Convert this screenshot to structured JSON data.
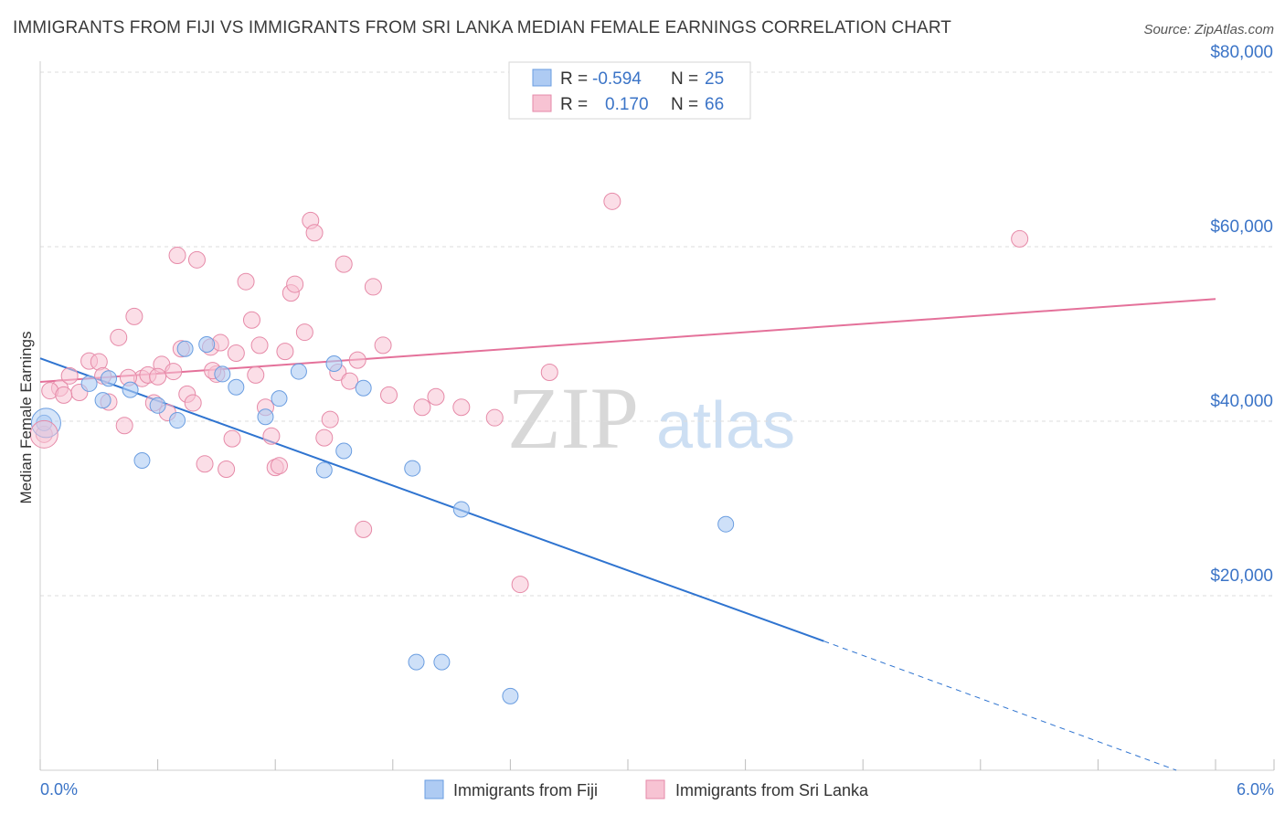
{
  "title": "IMMIGRANTS FROM FIJI VS IMMIGRANTS FROM SRI LANKA MEDIAN FEMALE EARNINGS CORRELATION CHART",
  "source": "Source: ZipAtlas.com",
  "watermark": {
    "zip": "ZIP",
    "atlas": "atlas"
  },
  "colors": {
    "fiji_fill": "#aecbf3",
    "fiji_stroke": "#6a9de0",
    "fiji_line": "#2f74d0",
    "srilanka_fill": "#f7c3d3",
    "srilanka_stroke": "#e68aa8",
    "srilanka_line": "#e4719a",
    "grid": "#dddddd",
    "tick_text": "#3b74c7"
  },
  "legend": {
    "rows": [
      {
        "r_label": "R =",
        "r_value": "-0.594",
        "n_label": "N =",
        "n_value": "25"
      },
      {
        "r_label": "R =",
        "r_value": "0.170",
        "n_label": "N =",
        "n_value": "66"
      }
    ]
  },
  "bottom_legend": [
    "Immigrants from Fiji",
    "Immigrants from Sri Lanka"
  ],
  "chart_data": {
    "type": "scatter",
    "xlabel": "",
    "ylabel": "Median Female Earnings",
    "xlim": [
      0,
      6
    ],
    "ylim": [
      0,
      80000
    ],
    "x_tick_labels": [
      "0.0%",
      "6.0%"
    ],
    "y_ticks": [
      20000,
      40000,
      60000,
      80000
    ],
    "y_tick_labels": [
      "$20,000",
      "$40,000",
      "$60,000",
      "$80,000"
    ],
    "grid": true,
    "legend_position": "top-center",
    "series": [
      {
        "name": "Immigrants from Fiji",
        "points": [
          [
            0.02,
            39800
          ],
          [
            0.25,
            44300
          ],
          [
            0.35,
            44900
          ],
          [
            0.32,
            42400
          ],
          [
            0.46,
            43600
          ],
          [
            0.52,
            35500
          ],
          [
            0.6,
            41800
          ],
          [
            0.7,
            40100
          ],
          [
            0.74,
            48300
          ],
          [
            0.85,
            48800
          ],
          [
            0.93,
            45400
          ],
          [
            1.0,
            43900
          ],
          [
            1.15,
            40500
          ],
          [
            1.22,
            42600
          ],
          [
            1.32,
            45700
          ],
          [
            1.45,
            34400
          ],
          [
            1.5,
            46600
          ],
          [
            1.55,
            36600
          ],
          [
            1.65,
            43800
          ],
          [
            1.9,
            34600
          ],
          [
            2.15,
            29900
          ],
          [
            1.92,
            12400
          ],
          [
            2.05,
            12400
          ],
          [
            2.4,
            8500
          ],
          [
            3.5,
            28200
          ]
        ],
        "trend": {
          "x": [
            0.0,
            4.0
          ],
          "y": [
            47200,
            14800
          ],
          "dashed_to": [
            5.8,
            0
          ]
        }
      },
      {
        "name": "Immigrants from Sri Lanka",
        "points": [
          [
            0.02,
            38500
          ],
          [
            0.1,
            43800
          ],
          [
            0.15,
            45200
          ],
          [
            0.2,
            43300
          ],
          [
            0.25,
            46900
          ],
          [
            0.3,
            46800
          ],
          [
            0.32,
            45200
          ],
          [
            0.35,
            42200
          ],
          [
            0.4,
            49600
          ],
          [
            0.43,
            39500
          ],
          [
            0.48,
            52000
          ],
          [
            0.52,
            44900
          ],
          [
            0.55,
            45300
          ],
          [
            0.58,
            42100
          ],
          [
            0.62,
            46500
          ],
          [
            0.65,
            41000
          ],
          [
            0.68,
            45700
          ],
          [
            0.7,
            59000
          ],
          [
            0.72,
            48300
          ],
          [
            0.75,
            43100
          ],
          [
            0.78,
            42100
          ],
          [
            0.8,
            58500
          ],
          [
            0.84,
            35100
          ],
          [
            0.87,
            48500
          ],
          [
            0.9,
            45400
          ],
          [
            0.92,
            49000
          ],
          [
            0.95,
            34500
          ],
          [
            0.98,
            38000
          ],
          [
            1.0,
            47800
          ],
          [
            1.05,
            56000
          ],
          [
            1.08,
            51600
          ],
          [
            1.12,
            48700
          ],
          [
            1.15,
            41600
          ],
          [
            1.18,
            38300
          ],
          [
            1.2,
            34700
          ],
          [
            1.22,
            34900
          ],
          [
            1.25,
            48000
          ],
          [
            1.28,
            54700
          ],
          [
            1.3,
            55700
          ],
          [
            1.35,
            50200
          ],
          [
            1.38,
            63000
          ],
          [
            1.4,
            61600
          ],
          [
            1.45,
            38100
          ],
          [
            1.48,
            40200
          ],
          [
            1.52,
            45600
          ],
          [
            1.55,
            58000
          ],
          [
            1.58,
            44600
          ],
          [
            1.62,
            47000
          ],
          [
            1.65,
            27600
          ],
          [
            1.7,
            55400
          ],
          [
            1.75,
            48700
          ],
          [
            1.78,
            43000
          ],
          [
            1.95,
            41600
          ],
          [
            2.02,
            42800
          ],
          [
            2.15,
            41600
          ],
          [
            2.32,
            40400
          ],
          [
            2.45,
            21300
          ],
          [
            2.6,
            45600
          ],
          [
            2.92,
            65200
          ],
          [
            5.0,
            60900
          ],
          [
            0.05,
            43500
          ],
          [
            0.12,
            43000
          ],
          [
            0.45,
            45000
          ],
          [
            0.88,
            45800
          ],
          [
            1.1,
            45300
          ],
          [
            0.6,
            45100
          ]
        ],
        "trend": {
          "x": [
            0.0,
            6.0
          ],
          "y": [
            44500,
            54000
          ]
        }
      }
    ]
  }
}
